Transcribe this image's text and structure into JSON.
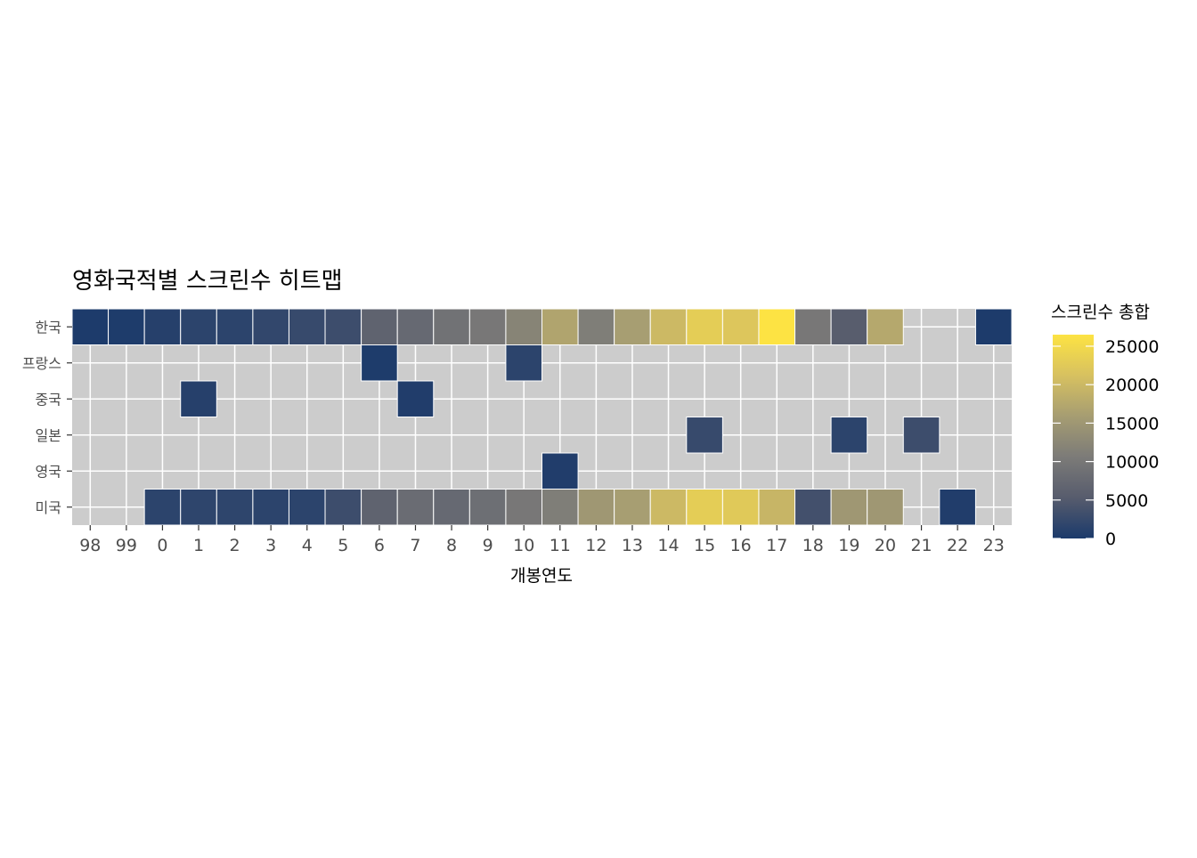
{
  "chart_data": {
    "type": "heatmap",
    "title": "영화국적별 스크린수 히트맵",
    "xlabel": "개봉연도",
    "ylabel": "",
    "x_categories": [
      "98",
      "99",
      "0",
      "1",
      "2",
      "3",
      "4",
      "5",
      "6",
      "7",
      "8",
      "9",
      "10",
      "11",
      "12",
      "13",
      "14",
      "15",
      "16",
      "17",
      "18",
      "19",
      "20",
      "21",
      "22",
      "23"
    ],
    "y_categories": [
      "한국",
      "프랑스",
      "중국",
      "일본",
      "영국",
      "미국"
    ],
    "values": [
      [
        200,
        300,
        1000,
        1500,
        1500,
        2000,
        2500,
        3000,
        6500,
        7500,
        9000,
        10000,
        12000,
        17000,
        11000,
        16000,
        20000,
        23000,
        22000,
        26500,
        10000,
        5500,
        17500,
        null,
        null,
        200
      ],
      [
        null,
        null,
        null,
        null,
        null,
        null,
        null,
        null,
        300,
        null,
        null,
        null,
        1500,
        null,
        null,
        null,
        null,
        null,
        null,
        null,
        null,
        null,
        null,
        null,
        null,
        null
      ],
      [
        null,
        null,
        null,
        1000,
        null,
        null,
        null,
        null,
        null,
        500,
        null,
        null,
        null,
        null,
        null,
        null,
        null,
        null,
        null,
        null,
        null,
        null,
        null,
        null,
        null,
        null
      ],
      [
        null,
        null,
        null,
        null,
        null,
        null,
        null,
        null,
        null,
        null,
        null,
        null,
        null,
        null,
        null,
        null,
        null,
        2500,
        null,
        null,
        null,
        1500,
        null,
        3000,
        null,
        null
      ],
      [
        null,
        null,
        null,
        null,
        null,
        null,
        null,
        null,
        null,
        null,
        null,
        null,
        null,
        500,
        null,
        null,
        null,
        null,
        null,
        null,
        null,
        null,
        null,
        null,
        null,
        null
      ],
      [
        null,
        null,
        1500,
        1700,
        1700,
        1500,
        1500,
        3000,
        6500,
        8000,
        7500,
        8500,
        10000,
        11000,
        15000,
        16000,
        20000,
        23000,
        22500,
        19500,
        3500,
        15000,
        15000,
        null,
        500,
        null
      ]
    ],
    "legend": {
      "title": "스크린수 총합",
      "ticks": [
        0,
        5000,
        10000,
        15000,
        20000,
        25000
      ],
      "min": 0,
      "max": 26500,
      "colors": [
        "#1b3a6b",
        "#575c6d",
        "#7c7b78",
        "#a69d72",
        "#d7c160",
        "#fde343"
      ],
      "placement": "right"
    },
    "panel_background": "#cccccc",
    "grid": true
  }
}
